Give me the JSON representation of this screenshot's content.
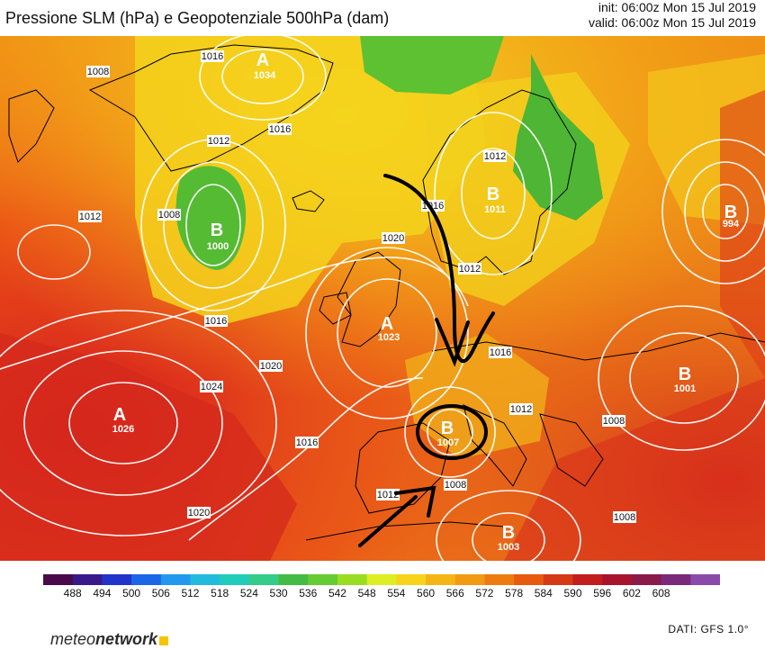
{
  "header": {
    "title": "Pressione SLM (hPa) e Geopotenziale 500hPa (dam)",
    "init": "init: 06:00z Mon 15 Jul 2019",
    "valid": "valid: 06:00z Mon 15 Jul 2019"
  },
  "map": {
    "pressure_centers": [
      {
        "letter": "A",
        "value": "1034"
      },
      {
        "letter": "B",
        "value": "1000"
      },
      {
        "letter": "B",
        "value": "1011"
      },
      {
        "letter": "B",
        "value": "994"
      },
      {
        "letter": "A",
        "value": "1023"
      },
      {
        "letter": "A",
        "value": "1026"
      },
      {
        "letter": "B",
        "value": "1001"
      },
      {
        "letter": "B",
        "value": "1007"
      },
      {
        "letter": "B",
        "value": "1003"
      }
    ],
    "isobar_labels": [
      "1008",
      "1016",
      "1012",
      "1016",
      "1012",
      "1012",
      "1008",
      "1020",
      "1016",
      "1016",
      "1020",
      "1024",
      "1016",
      "1012",
      "1008",
      "1016",
      "1012",
      "1008",
      "1008",
      "1020",
      "1012"
    ]
  },
  "colorbar": {
    "ticks": [
      "488",
      "494",
      "500",
      "506",
      "512",
      "518",
      "524",
      "530",
      "536",
      "542",
      "548",
      "554",
      "560",
      "566",
      "572",
      "578",
      "584",
      "590",
      "596",
      "602",
      "608"
    ],
    "colors": [
      "#4a0a4a",
      "#3a1a8a",
      "#2233cc",
      "#1a66e6",
      "#2299ee",
      "#22bbdd",
      "#22ccbb",
      "#33cc88",
      "#44bb44",
      "#66cc33",
      "#99dd22",
      "#ddee22",
      "#f7d31a",
      "#f5b515",
      "#f29a12",
      "#ee7b10",
      "#e85a10",
      "#d63a14",
      "#c21e1e",
      "#a8142e",
      "#8a1a4a",
      "#7a2a7a",
      "#8a4aaa"
    ]
  },
  "footer": {
    "logo_regular": "meteo",
    "logo_bold": "network",
    "dati": "DATI:  GFS  1.0°"
  }
}
